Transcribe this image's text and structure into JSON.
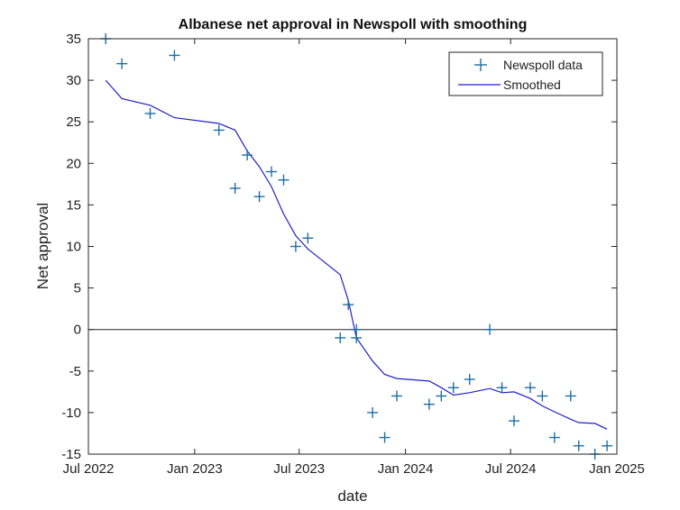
{
  "chart_data": {
    "type": "line",
    "title": "Albanese net approval in Newspoll with smoothing",
    "xlabel": "date",
    "ylabel": "Net approval",
    "xlim": [
      "2022-07-01",
      "2025-01-01"
    ],
    "ylim": [
      -15,
      35
    ],
    "x_ticks": [
      "2022-07-01",
      "2023-01-01",
      "2023-07-01",
      "2024-01-01",
      "2024-07-01",
      "2025-01-01"
    ],
    "x_tick_labels": [
      "Jul 2022",
      "Jan 2023",
      "Jul 2023",
      "Jan 2024",
      "Jul 2024",
      "Jan 2025"
    ],
    "y_ticks": [
      -15,
      -10,
      -5,
      0,
      5,
      10,
      15,
      20,
      25,
      30,
      35
    ],
    "zero_line": true,
    "grid": false,
    "legend_position": "top-right",
    "colors": {
      "data_marker": "#1f6fa5",
      "smoothed_line": "#2020c8",
      "axes": "#262626"
    },
    "series": [
      {
        "name": "Newspoll data",
        "style": "marker-plus",
        "points": [
          {
            "x": "2022-07-31",
            "y": 35
          },
          {
            "x": "2022-08-28",
            "y": 32
          },
          {
            "x": "2022-10-16",
            "y": 26
          },
          {
            "x": "2022-11-27",
            "y": 33
          },
          {
            "x": "2023-02-12",
            "y": 24
          },
          {
            "x": "2023-03-12",
            "y": 17
          },
          {
            "x": "2023-04-02",
            "y": 21
          },
          {
            "x": "2023-04-23",
            "y": 16
          },
          {
            "x": "2023-05-14",
            "y": 19
          },
          {
            "x": "2023-06-04",
            "y": 18
          },
          {
            "x": "2023-06-25",
            "y": 10
          },
          {
            "x": "2023-07-16",
            "y": 11
          },
          {
            "x": "2023-09-10",
            "y": -1
          },
          {
            "x": "2023-09-24",
            "y": 3
          },
          {
            "x": "2023-10-08",
            "y": -1
          },
          {
            "x": "2023-10-08",
            "y": 0
          },
          {
            "x": "2023-11-05",
            "y": -10
          },
          {
            "x": "2023-11-26",
            "y": -13
          },
          {
            "x": "2023-12-17",
            "y": -8
          },
          {
            "x": "2024-02-11",
            "y": -9
          },
          {
            "x": "2024-03-03",
            "y": -8
          },
          {
            "x": "2024-03-24",
            "y": -7
          },
          {
            "x": "2024-04-21",
            "y": -6
          },
          {
            "x": "2024-05-26",
            "y": 0
          },
          {
            "x": "2024-06-16",
            "y": -7
          },
          {
            "x": "2024-07-07",
            "y": -11
          },
          {
            "x": "2024-08-04",
            "y": -7
          },
          {
            "x": "2024-08-25",
            "y": -8
          },
          {
            "x": "2024-09-15",
            "y": -13
          },
          {
            "x": "2024-10-13",
            "y": -8
          },
          {
            "x": "2024-10-27",
            "y": -14
          },
          {
            "x": "2024-11-24",
            "y": -15
          },
          {
            "x": "2024-12-15",
            "y": -14
          }
        ]
      },
      {
        "name": "Smoothed",
        "style": "line",
        "points": [
          {
            "x": "2022-07-31",
            "y": 30
          },
          {
            "x": "2022-08-28",
            "y": 27.8
          },
          {
            "x": "2022-10-16",
            "y": 27
          },
          {
            "x": "2022-11-27",
            "y": 25.5
          },
          {
            "x": "2023-02-12",
            "y": 24.8
          },
          {
            "x": "2023-03-12",
            "y": 24.0
          },
          {
            "x": "2023-04-02",
            "y": 21.5
          },
          {
            "x": "2023-04-23",
            "y": 19.6
          },
          {
            "x": "2023-05-14",
            "y": 17.2
          },
          {
            "x": "2023-06-04",
            "y": 13.9
          },
          {
            "x": "2023-06-25",
            "y": 11.3
          },
          {
            "x": "2023-07-16",
            "y": 9.7
          },
          {
            "x": "2023-09-10",
            "y": 6.6
          },
          {
            "x": "2023-09-24",
            "y": 3.5
          },
          {
            "x": "2023-10-08",
            "y": -1.0
          },
          {
            "x": "2023-11-05",
            "y": -3.8
          },
          {
            "x": "2023-11-26",
            "y": -5.4
          },
          {
            "x": "2023-12-17",
            "y": -5.9
          },
          {
            "x": "2024-02-11",
            "y": -6.2
          },
          {
            "x": "2024-03-03",
            "y": -7.0
          },
          {
            "x": "2024-03-24",
            "y": -7.9
          },
          {
            "x": "2024-04-21",
            "y": -7.6
          },
          {
            "x": "2024-05-26",
            "y": -7.1
          },
          {
            "x": "2024-06-16",
            "y": -7.6
          },
          {
            "x": "2024-07-07",
            "y": -7.5
          },
          {
            "x": "2024-08-04",
            "y": -8.3
          },
          {
            "x": "2024-08-25",
            "y": -9.2
          },
          {
            "x": "2024-09-15",
            "y": -9.9
          },
          {
            "x": "2024-10-13",
            "y": -10.8
          },
          {
            "x": "2024-10-27",
            "y": -11.2
          },
          {
            "x": "2024-11-24",
            "y": -11.3
          },
          {
            "x": "2024-12-15",
            "y": -12.0
          }
        ]
      }
    ]
  }
}
